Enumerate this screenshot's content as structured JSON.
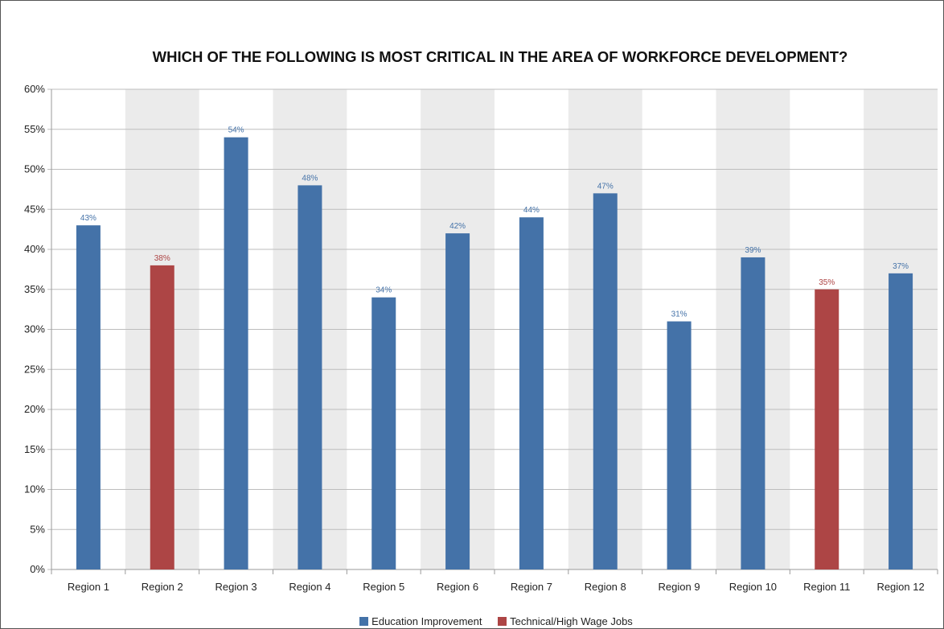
{
  "chart_data": {
    "type": "bar",
    "title": "WHICH OF THE FOLLOWING IS MOST CRITICAL IN THE AREA OF WORKFORCE DEVELOPMENT?",
    "xlabel": "",
    "ylabel": "",
    "ylim": [
      0,
      60
    ],
    "yticks": [
      "0%",
      "5%",
      "10%",
      "15%",
      "20%",
      "25%",
      "30%",
      "35%",
      "40%",
      "45%",
      "50%",
      "55%",
      "60%"
    ],
    "categories": [
      "Region 1",
      "Region 2",
      "Region 3",
      "Region 4",
      "Region 5",
      "Region 6",
      "Region 7",
      "Region 8",
      "Region 9",
      "Region 10",
      "Region 11",
      "Region 12"
    ],
    "values": [
      43,
      38,
      54,
      48,
      34,
      42,
      44,
      47,
      31,
      39,
      35,
      37
    ],
    "value_labels": [
      "43%",
      "38%",
      "54%",
      "48%",
      "34%",
      "42%",
      "44%",
      "47%",
      "31%",
      "39%",
      "35%",
      "37%"
    ],
    "bar_series": [
      "Education Improvement",
      "Technical/High Wage Jobs",
      "Education Improvement",
      "Education Improvement",
      "Education Improvement",
      "Education Improvement",
      "Education Improvement",
      "Education Improvement",
      "Education Improvement",
      "Education Improvement",
      "Technical/High Wage Jobs",
      "Education Improvement"
    ],
    "series": [
      {
        "name": "Education Improvement",
        "color": "#4472a8"
      },
      {
        "name": "Technical/High Wage Jobs",
        "color": "#ad4545"
      }
    ],
    "grid": true,
    "alternating_bands": true,
    "legend_position": "bottom"
  }
}
